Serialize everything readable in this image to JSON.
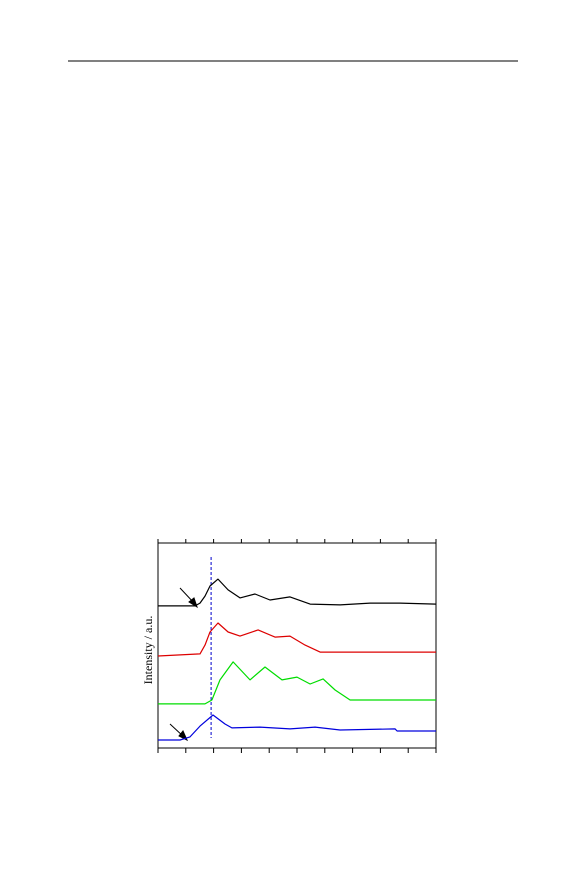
{
  "chart_data": {
    "type": "line",
    "y_label": "Intensity / a.u.",
    "xlim": [
      0,
      100
    ],
    "ylim": [
      0,
      100
    ],
    "xticks": [
      0,
      10,
      20,
      30,
      40,
      50,
      60,
      70,
      80,
      90,
      100
    ],
    "reference_line": {
      "x": 19.1,
      "color": "#0000cc"
    },
    "series": [
      {
        "color": "#000000",
        "x": [
          0,
          13.3,
          15.1,
          16.9,
          18.7,
          21.6,
          25.2,
          29.5,
          34.9,
          40.3,
          47.5,
          54.7,
          65.5,
          76.3,
          87.1,
          100
        ],
        "values": [
          69.3,
          69.3,
          70.7,
          74.1,
          79.0,
          82.4,
          77.1,
          73.2,
          75.1,
          72.2,
          73.7,
          70.2,
          69.8,
          70.7,
          70.7,
          70.2
        ]
      },
      {
        "color": "#dd0000",
        "x": [
          0,
          15.1,
          16.9,
          18.7,
          21.6,
          25.2,
          29.5,
          36.0,
          42.1,
          47.5,
          52.9,
          58.3,
          72.7,
          100
        ],
        "values": [
          44.9,
          45.9,
          50.2,
          56.6,
          61.0,
          56.6,
          54.6,
          57.6,
          54.1,
          54.6,
          50.2,
          46.8,
          46.8,
          46.8
        ]
      },
      {
        "color": "#00dd00",
        "x": [
          0,
          16.9,
          19.4,
          22.3,
          27.0,
          33.1,
          38.5,
          44.6,
          50.0,
          54.7,
          59.4,
          63.7,
          69.1,
          100
        ],
        "values": [
          21.5,
          21.5,
          23.4,
          33.2,
          42.0,
          33.2,
          39.5,
          33.2,
          34.6,
          31.2,
          33.7,
          28.3,
          23.4,
          23.4
        ]
      },
      {
        "color": "#0000dd",
        "x": [
          0,
          7.9,
          11.5,
          15.1,
          19.8,
          24.1,
          26.6,
          36.7,
          47.5,
          56.5,
          65.5,
          85.3,
          86.0,
          100
        ],
        "values": [
          3.9,
          3.9,
          5.4,
          10.7,
          16.1,
          11.7,
          9.8,
          10.2,
          9.3,
          10.2,
          8.8,
          9.3,
          8.3,
          8.3
        ]
      }
    ]
  }
}
